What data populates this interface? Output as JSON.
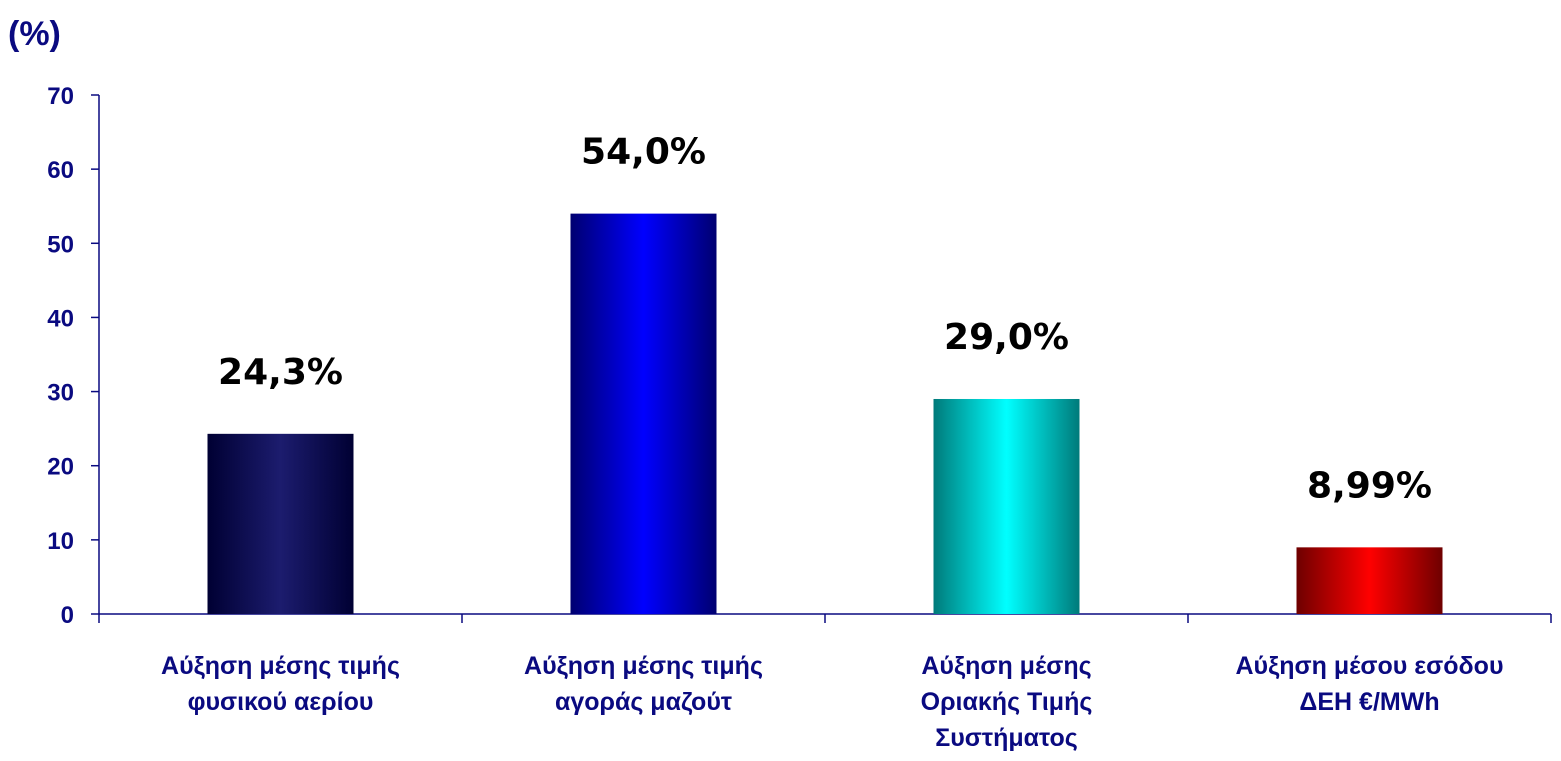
{
  "chart_data": {
    "type": "bar",
    "ylabel": "(%)",
    "ylim": [
      0,
      70
    ],
    "yticks": [
      0,
      10,
      20,
      30,
      40,
      50,
      60,
      70
    ],
    "categories": [
      [
        "Αύξηση μέσης τιμής",
        "φυσικού αερίου"
      ],
      [
        "Αύξηση μέσης τιμής",
        "αγοράς μαζούτ"
      ],
      [
        "Αύξηση μέσης",
        "Οριακής Τιμής",
        "Συστήματος"
      ],
      [
        "Αύξηση μέσου εσόδου",
        "ΔΕΗ €/MWh"
      ]
    ],
    "values": [
      24.3,
      54.0,
      29.0,
      8.99
    ],
    "data_labels": [
      "24,3%",
      "54,0%",
      "29,0%",
      "8,99%"
    ],
    "bar_colors": [
      {
        "edge": "#000033",
        "center": "#1c1c6e"
      },
      {
        "edge": "#000070",
        "center": "#0000ff"
      },
      {
        "edge": "#007a7a",
        "center": "#00ffff"
      },
      {
        "edge": "#6e0000",
        "center": "#ff0000"
      }
    ],
    "axis_color": "#0a0a80",
    "grid": false,
    "legend": "none"
  }
}
